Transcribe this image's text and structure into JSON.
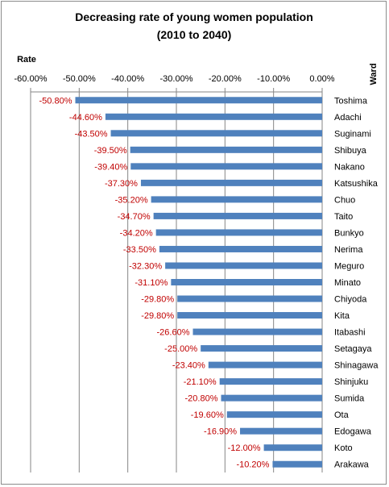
{
  "chart_data": {
    "type": "bar",
    "orientation": "horizontal",
    "title": [
      "Decreasing rate of young women population",
      "(2010 to 2040)"
    ],
    "xlabel": "Rate",
    "ylabel": "Ward",
    "xlim": [
      -60,
      0
    ],
    "x_ticks": [
      -60,
      -50,
      -40,
      -30,
      -20,
      -10,
      0
    ],
    "x_tick_labels": [
      "-60.00%",
      "-50.00%",
      "-40.00%",
      "-30.00%",
      "-20.00%",
      "-10.00%",
      "0.00%"
    ],
    "grid": true,
    "categories": [
      "Toshima",
      "Adachi",
      "Suginami",
      "Shibuya",
      "Nakano",
      "Katsushika",
      "Chuo",
      "Taito",
      "Bunkyo",
      "Nerima",
      "Meguro",
      "Minato",
      "Chiyoda",
      "Kita",
      "Itabashi",
      "Setagaya",
      "Shinagawa",
      "Shinjuku",
      "Sumida",
      "Ota",
      "Edogawa",
      "Koto",
      "Arakawa"
    ],
    "values": [
      -50.8,
      -44.6,
      -43.5,
      -39.5,
      -39.4,
      -37.3,
      -35.2,
      -34.7,
      -34.2,
      -33.5,
      -32.3,
      -31.1,
      -29.8,
      -29.8,
      -26.6,
      -25.0,
      -23.4,
      -21.1,
      -20.8,
      -19.6,
      -16.9,
      -12.0,
      -10.2
    ],
    "data_labels": [
      "-50.80%",
      "-44.60%",
      "-43.50%",
      "-39.50%",
      "-39.40%",
      "-37.30%",
      "-35.20%",
      "-34.70%",
      "-34.20%",
      "-33.50%",
      "-32.30%",
      "-31.10%",
      "-29.80%",
      "-29.80%",
      "-26.60%",
      "-25.00%",
      "-23.40%",
      "-21.10%",
      "-20.80%",
      "-19.60%",
      "-16.90%",
      "-12.00%",
      "-10.20%"
    ]
  },
  "colors": {
    "bar": "#4f81bd",
    "data_label": "#c00000",
    "grid": "#868686",
    "axis": "#868686"
  }
}
